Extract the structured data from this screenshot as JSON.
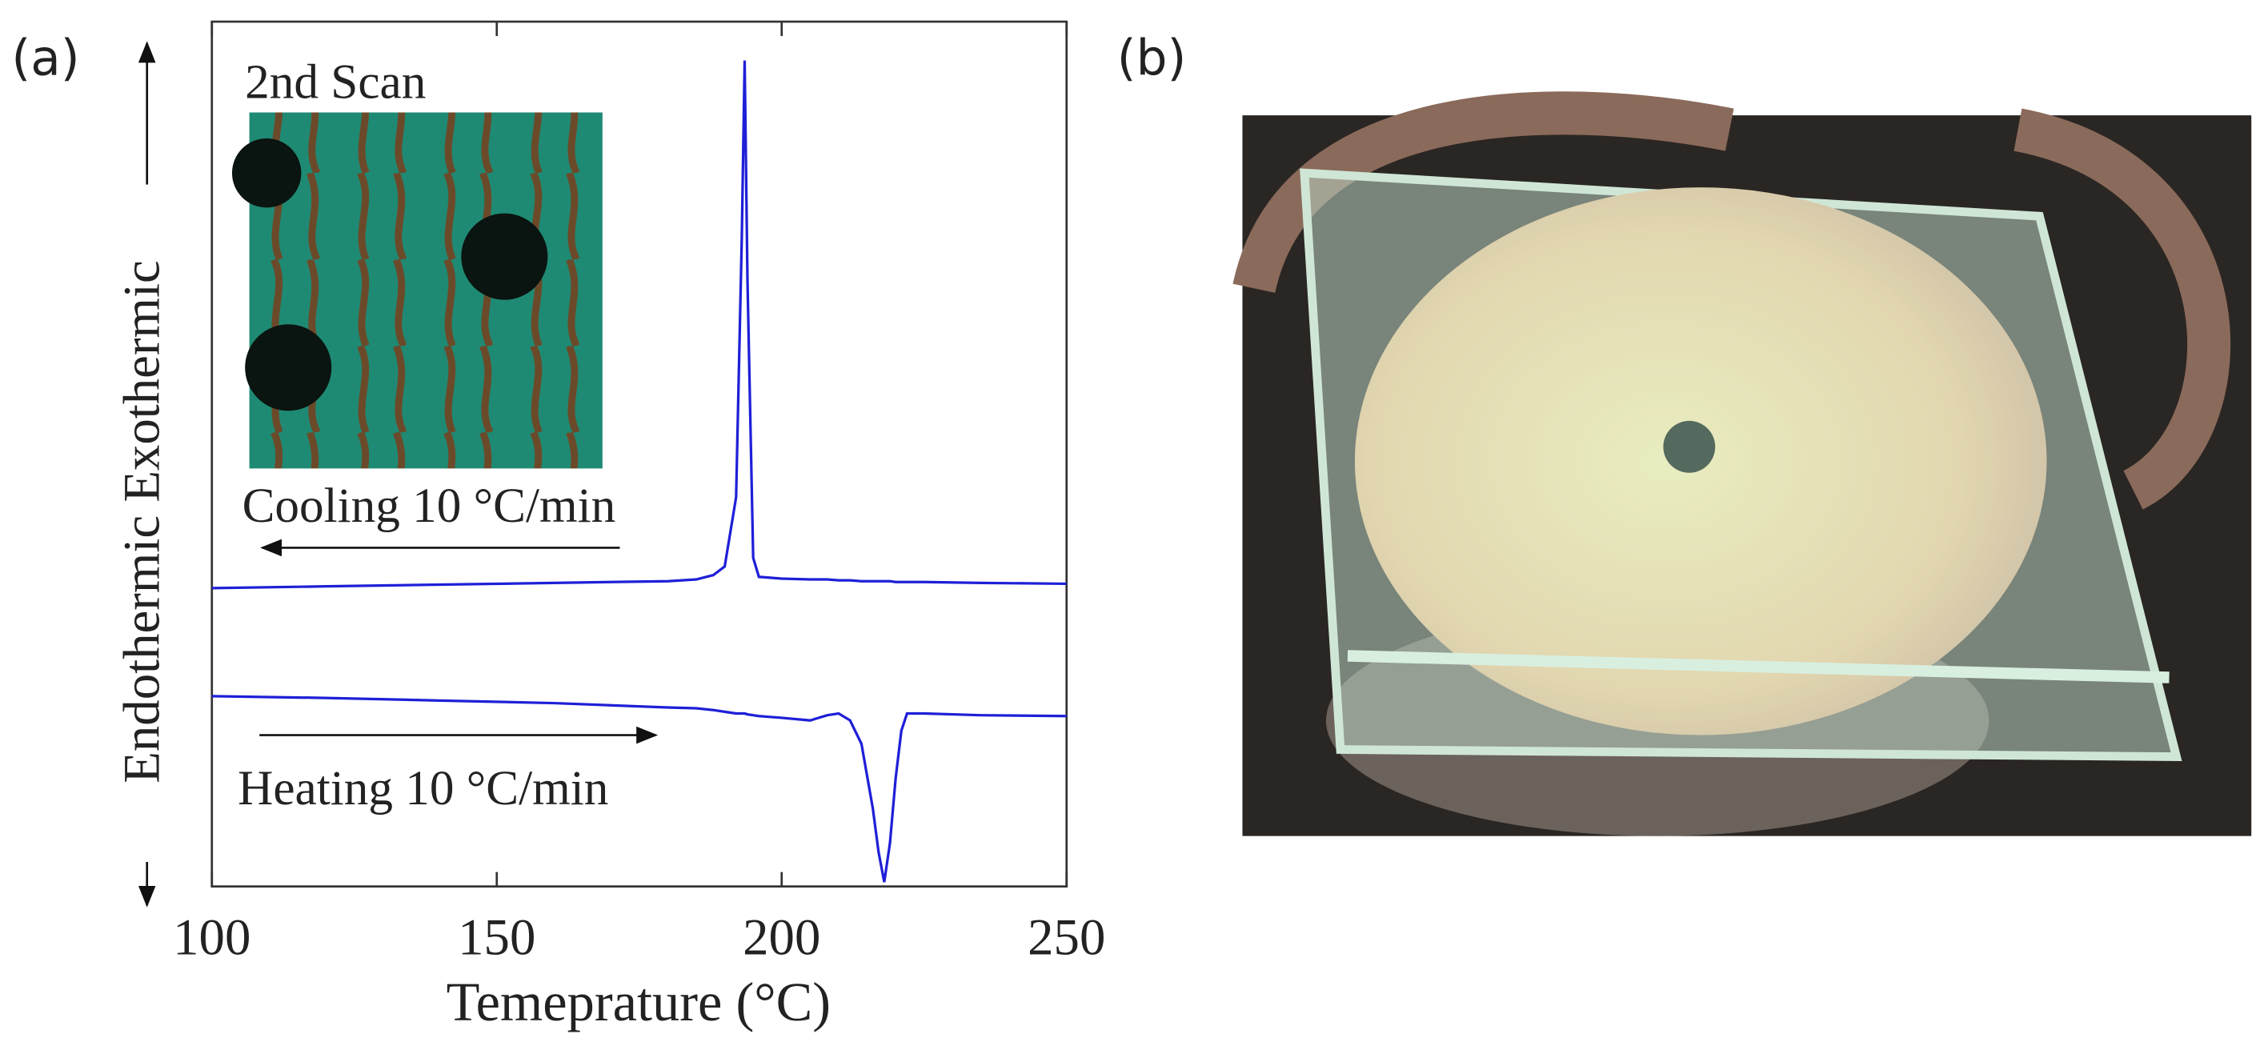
{
  "panel_labels": [
    "(a)",
    "(b)"
  ],
  "chart_data": {
    "type": "line",
    "x_label": "Temeprature (°C)",
    "y_label": "Endothermic Exothermic",
    "annotations": [
      "2nd Scan",
      "Cooling 10 °C/min",
      "Heating 10 °C/min"
    ],
    "x": [
      100,
      120,
      140,
      160,
      180,
      185,
      188,
      190,
      192,
      193,
      193.5,
      194,
      195,
      196,
      200,
      205,
      208,
      210,
      212,
      214,
      216,
      217,
      218,
      219,
      220,
      221,
      222,
      225,
      235,
      250
    ],
    "series": [
      {
        "name": "Cooling",
        "color": "#1f1fd8",
        "values": [
          34.5,
          34.7,
          34.9,
          35.1,
          35.3,
          35.5,
          36,
          37,
          45,
          75,
          95.5,
          70,
          38,
          35.8,
          35.6,
          35.5,
          35.5,
          35.4,
          35.4,
          35.3,
          35.3,
          35.3,
          35.3,
          35.3,
          35.2,
          35.2,
          35.2,
          35.2,
          35.1,
          35
        ]
      },
      {
        "name": "Heating",
        "color": "#1f1fd8",
        "values": [
          22,
          21.8,
          21.5,
          21.2,
          20.7,
          20.6,
          20.4,
          20.2,
          20,
          20,
          20,
          19.9,
          19.8,
          19.7,
          19.5,
          19.2,
          19.8,
          20,
          19.2,
          16.5,
          9,
          4,
          0.5,
          5,
          12.5,
          18,
          20,
          20,
          19.8,
          19.7
        ]
      }
    ],
    "xlim": [
      100,
      250
    ],
    "xticks": [
      100,
      150,
      200,
      250
    ],
    "ylim": [
      0,
      100
    ]
  }
}
